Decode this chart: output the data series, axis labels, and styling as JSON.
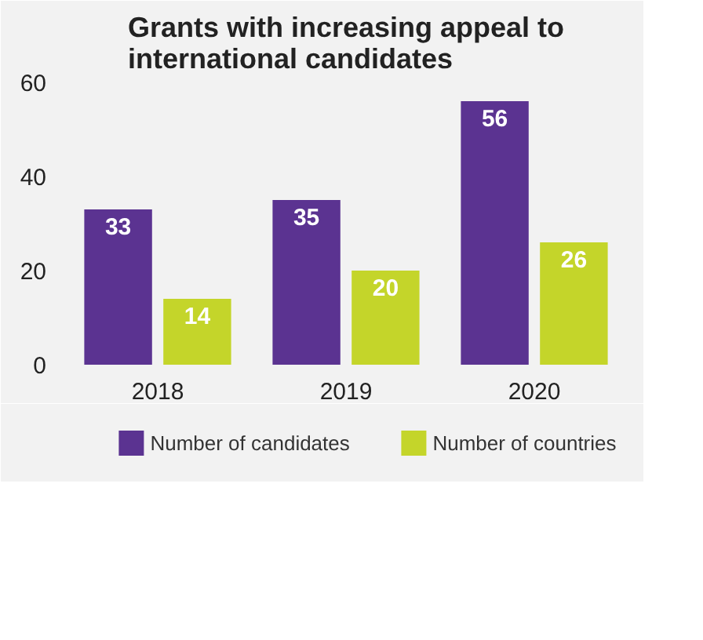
{
  "chart_data": {
    "type": "bar",
    "title": "Grants with increasing appeal to\ninternational candidates",
    "categories": [
      "2018",
      "2019",
      "2020"
    ],
    "series": [
      {
        "name": "Number of candidates",
        "color": "#5b3391",
        "values": [
          33,
          35,
          56
        ]
      },
      {
        "name": "Number of countries",
        "color": "#c4d52a",
        "values": [
          14,
          20,
          26
        ]
      }
    ],
    "ylim": [
      0,
      60
    ],
    "yticks": [
      0,
      20,
      40,
      60
    ],
    "grid": false,
    "legend": "bottom",
    "data_labels": true
  }
}
